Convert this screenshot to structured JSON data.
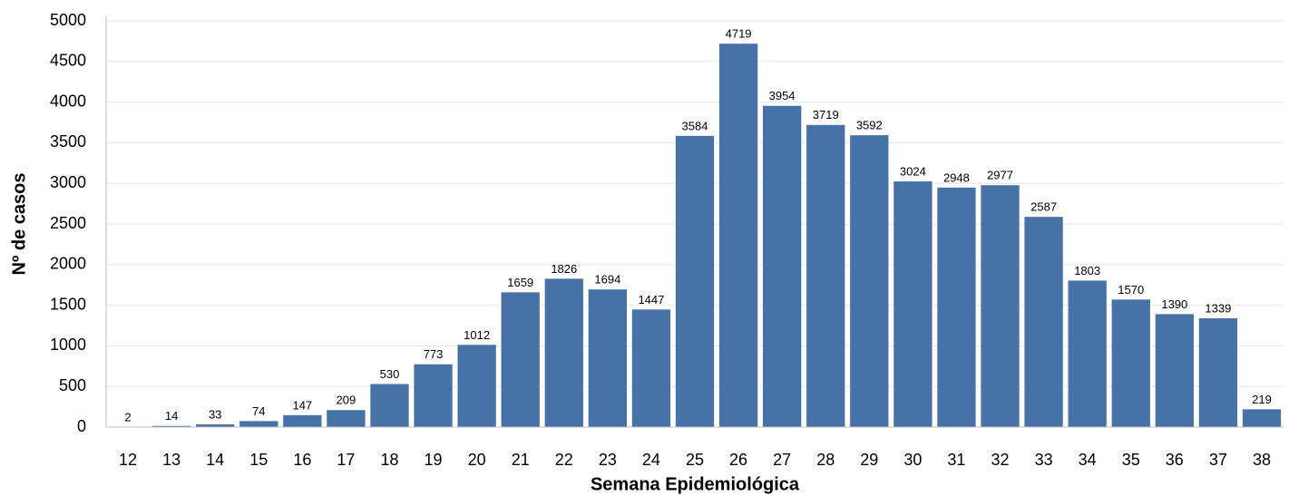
{
  "chart_data": {
    "type": "bar",
    "x_label": "Semana Epidemiológica",
    "y_label": "Nº de casos",
    "categories": [
      "12",
      "13",
      "14",
      "15",
      "16",
      "17",
      "18",
      "19",
      "20",
      "21",
      "22",
      "23",
      "24",
      "25",
      "26",
      "27",
      "28",
      "29",
      "30",
      "31",
      "32",
      "33",
      "34",
      "35",
      "36",
      "37",
      "38"
    ],
    "values": [
      2,
      14,
      33,
      74,
      147,
      209,
      530,
      773,
      1012,
      1659,
      1826,
      1694,
      1447,
      3584,
      4719,
      3954,
      3719,
      3592,
      3024,
      2948,
      2977,
      2587,
      1803,
      1570,
      1390,
      1339,
      219
    ],
    "color": "#4672a8",
    "ylim": [
      0,
      5000
    ],
    "yticks": [
      0,
      500,
      1000,
      1500,
      2000,
      2500,
      3000,
      3500,
      4000,
      4500,
      5000
    ],
    "grid": true
  }
}
